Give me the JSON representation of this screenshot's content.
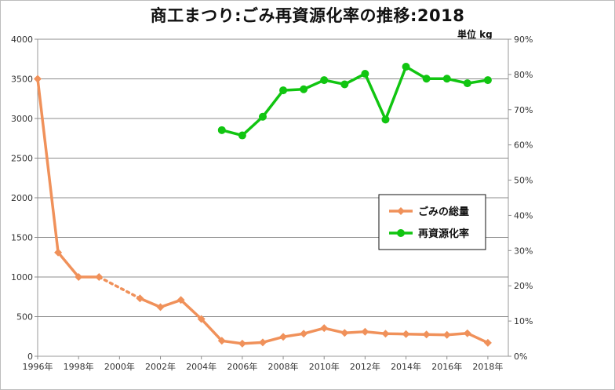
{
  "chart_data": {
    "type": "line",
    "title": "商工まつり:ごみ再資源化率の推移:2018",
    "unit_label": "単位  kg",
    "x_ticks": [
      "1996年",
      "1998年",
      "2000年",
      "2002年",
      "2004年",
      "2006年",
      "2008年",
      "2010年",
      "2012年",
      "2014年",
      "2016年",
      "2018年"
    ],
    "y_left": {
      "min": 0,
      "max": 4000,
      "step": 500,
      "ticks": [
        "0",
        "500",
        "1000",
        "1500",
        "2000",
        "2500",
        "3000",
        "3500",
        "4000"
      ]
    },
    "y_right": {
      "min": 0,
      "max": 0.9,
      "step": 0.1,
      "ticks": [
        "0%",
        "10%",
        "20%",
        "30%",
        "40%",
        "50%",
        "60%",
        "70%",
        "80%",
        "90%"
      ]
    },
    "series": [
      {
        "name": "ごみの総量",
        "axis": "left",
        "color": "#F0915A",
        "marker": "diamond",
        "x": [
          1996,
          1997,
          1998,
          1999,
          2001,
          2002,
          2003,
          2004,
          2005,
          2006,
          2007,
          2008,
          2009,
          2010,
          2011,
          2012,
          2013,
          2014,
          2015,
          2016,
          2017,
          2018
        ],
        "values": [
          3500,
          1310,
          1000,
          1000,
          730,
          620,
          710,
          470,
          195,
          160,
          175,
          245,
          285,
          355,
          295,
          310,
          285,
          280,
          275,
          270,
          290,
          170
        ],
        "dotted_segment": [
          1999,
          2001
        ]
      },
      {
        "name": "再資源化率",
        "axis": "right",
        "color": "#11C511",
        "marker": "circle",
        "x": [
          2005,
          2006,
          2007,
          2008,
          2009,
          2010,
          2011,
          2012,
          2013,
          2014,
          2015,
          2016,
          2017,
          2018
        ],
        "values": [
          0.642,
          0.627,
          0.68,
          0.755,
          0.758,
          0.784,
          0.772,
          0.802,
          0.672,
          0.822,
          0.788,
          0.788,
          0.775,
          0.784
        ]
      }
    ],
    "grid": true,
    "legend_position": "right-middle"
  }
}
